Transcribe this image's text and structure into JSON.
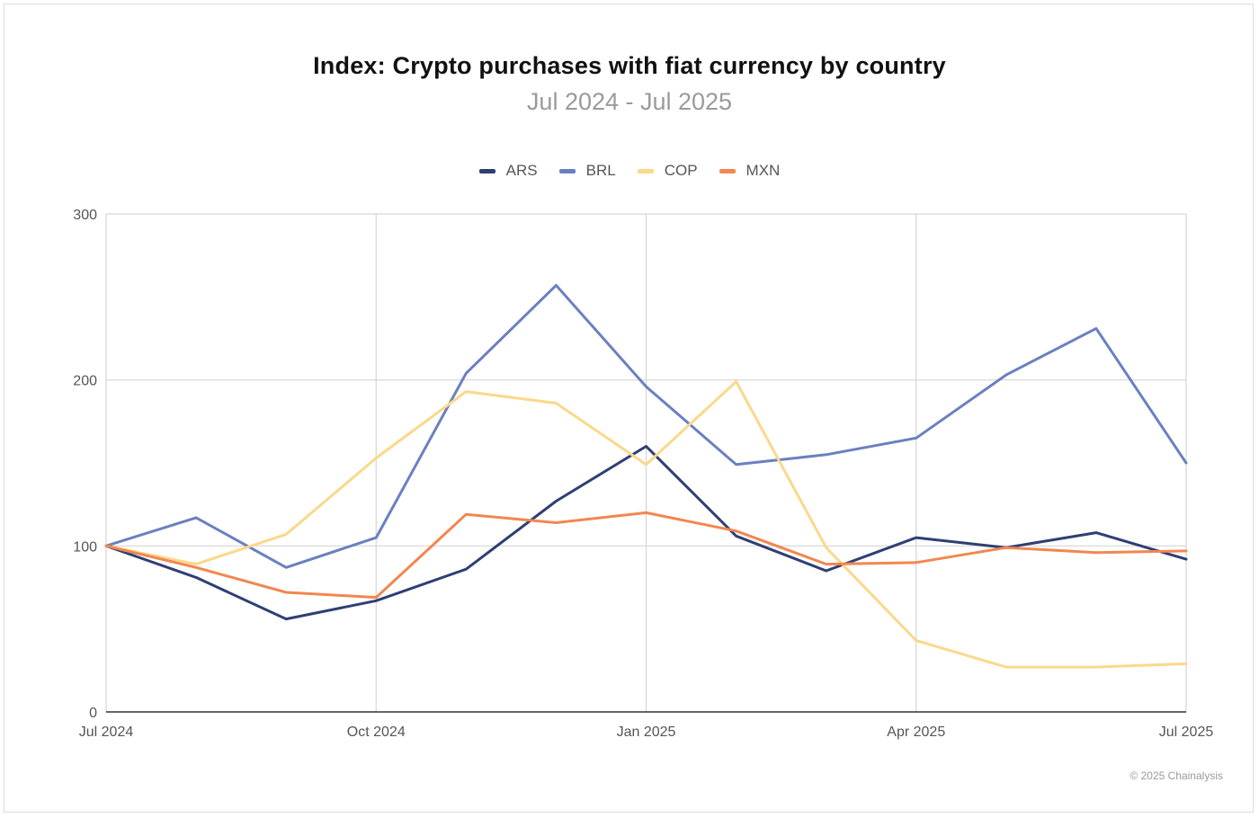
{
  "chart_data": {
    "type": "line",
    "title": "Index: Crypto purchases with fiat currency by country",
    "subtitle": "Jul 2024 - Jul 2025",
    "xlabel": "",
    "ylabel": "",
    "ylim": [
      0,
      300
    ],
    "yticks": [
      0,
      100,
      200,
      300
    ],
    "x_tick_labels": [
      "Jul 2024",
      "Oct 2024",
      "Jan 2025",
      "Apr 2025",
      "Jul 2025"
    ],
    "x_tick_indices": [
      0,
      3,
      6,
      9,
      12
    ],
    "x": [
      "Jul 2024",
      "Aug 2024",
      "Sep 2024",
      "Oct 2024",
      "Nov 2024",
      "Dec 2024",
      "Jan 2025",
      "Feb 2025",
      "Mar 2025",
      "Apr 2025",
      "May 2025",
      "Jun 2025",
      "Jul 2025"
    ],
    "legend_position": "top-center",
    "grid": true,
    "series": [
      {
        "name": "ARS",
        "color": "#2f3f73",
        "values": [
          100,
          81,
          56,
          67,
          86,
          127,
          160,
          106,
          85,
          105,
          99,
          108,
          92
        ]
      },
      {
        "name": "BRL",
        "color": "#6b80c0",
        "values": [
          100,
          117,
          87,
          105,
          204,
          257,
          196,
          149,
          155,
          165,
          203,
          231,
          150
        ]
      },
      {
        "name": "COP",
        "color": "#fbd88a",
        "values": [
          100,
          89,
          107,
          153,
          193,
          186,
          149,
          199,
          99,
          43,
          27,
          27,
          29
        ]
      },
      {
        "name": "MXN",
        "color": "#f2874f",
        "values": [
          100,
          87,
          72,
          69,
          119,
          114,
          120,
          109,
          89,
          90,
          99,
          96,
          97
        ]
      }
    ]
  },
  "footer": {
    "copyright": "© 2025 Chainalysis"
  }
}
